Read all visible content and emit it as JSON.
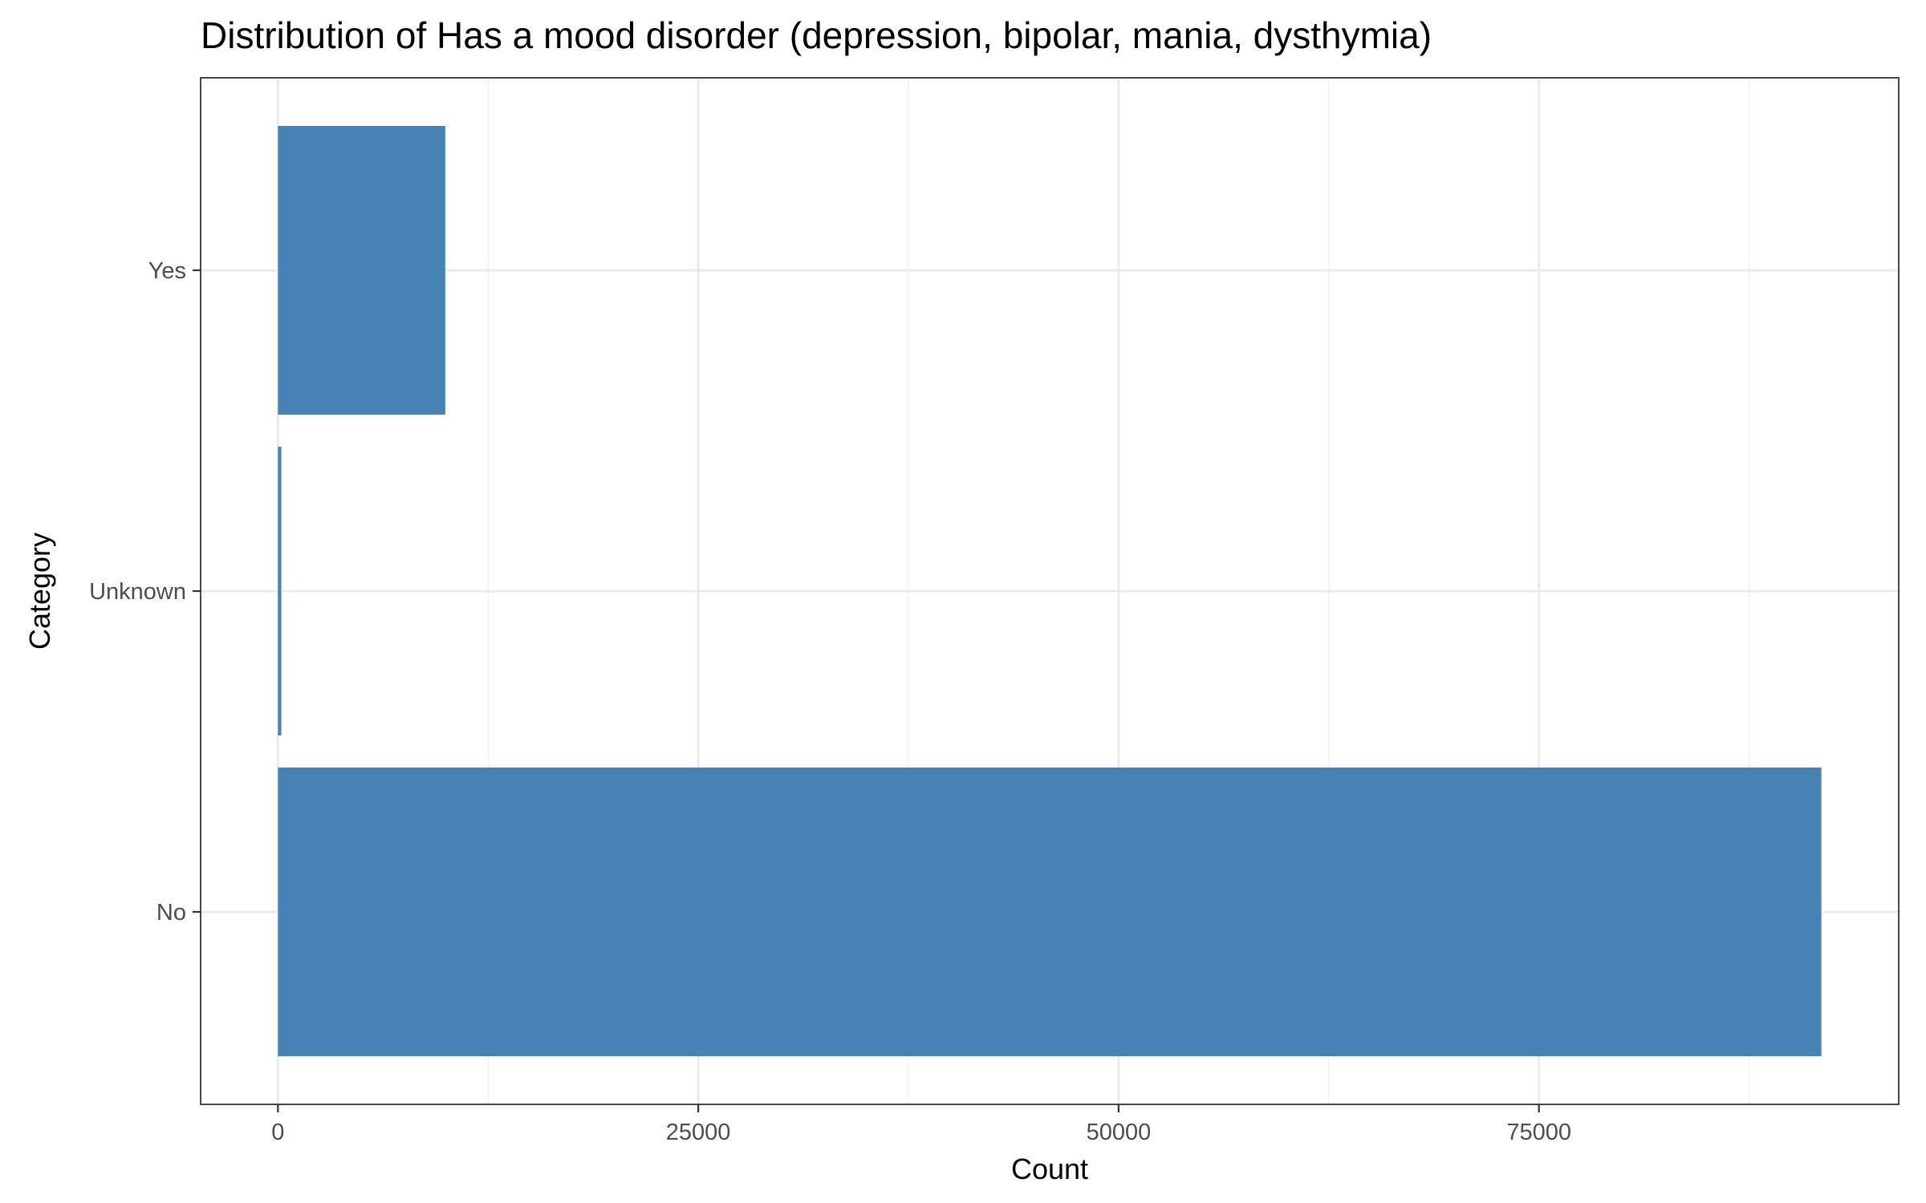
{
  "chart_data": {
    "type": "bar",
    "orientation": "horizontal",
    "title": "Distribution of Has a mood disorder (depression, bipolar, mania, dysthymia)",
    "xlabel": "Count",
    "ylabel": "Category",
    "categories": [
      "No",
      "Unknown",
      "Yes"
    ],
    "values": [
      91800,
      200,
      9950
    ],
    "xlim": [
      -4600,
      96400
    ],
    "xticks": [
      0,
      25000,
      50000,
      75000
    ],
    "xtick_labels": [
      "0",
      "25000",
      "50000",
      "75000"
    ],
    "grid": true,
    "legend": "none",
    "bar_color": "#4682b4"
  }
}
